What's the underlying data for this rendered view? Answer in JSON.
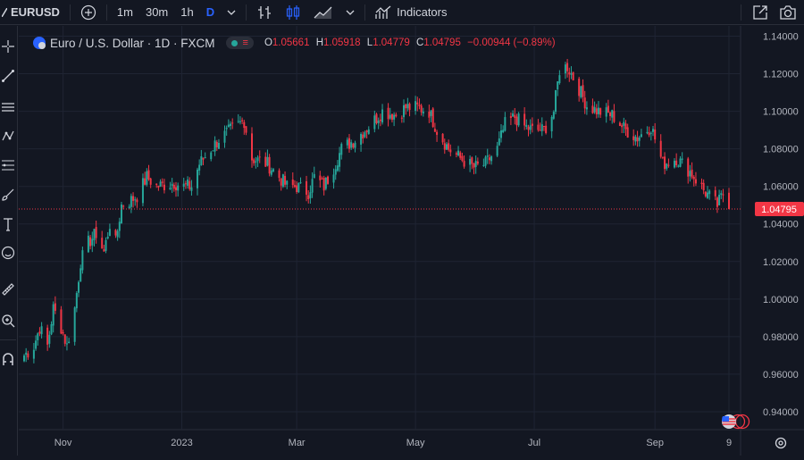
{
  "toolbar": {
    "symbol": "EURUSD",
    "intervals": [
      "1m",
      "30m",
      "1h",
      "D"
    ],
    "active_interval": "D",
    "indicators_label": "Indicators",
    "icons": [
      "add-symbol-icon",
      "chevron-down-icon",
      "bar-style-icon",
      "candle-style-icon",
      "area-style-icon",
      "indicators-icon",
      "fullscreen-icon",
      "camera-icon"
    ]
  },
  "left_tools": [
    "crosshair-icon",
    "trend-line-icon",
    "horizontal-lines-icon",
    "pattern-icon",
    "fib-icon",
    "brush-icon",
    "text-icon",
    "emoji-icon",
    "ruler-icon",
    "zoom-icon",
    "magnet-icon"
  ],
  "legend": {
    "title": "Euro / U.S. Dollar · 1D · FXCM",
    "open_label": "O",
    "open": "1.05661",
    "high_label": "H",
    "high": "1.05918",
    "low_label": "L",
    "low": "1.04779",
    "close_label": "C",
    "close": "1.04795",
    "change": "−0.00944 (−0.89%)"
  },
  "colors": {
    "up": "#26a69a",
    "down": "#f23645",
    "background": "#131722",
    "grid": "#1f2433",
    "text": "#b2b5be"
  },
  "chart_data": {
    "type": "candlestick",
    "symbol": "EURUSD",
    "interval": "1D",
    "ylim": [
      0.93,
      1.145
    ],
    "y_ticks": [
      "1.14000",
      "1.12000",
      "1.10000",
      "1.08000",
      "1.06000",
      "1.04000",
      "1.02000",
      "1.00000",
      "0.98000",
      "0.96000",
      "0.94000"
    ],
    "y_tick_values": [
      1.14,
      1.12,
      1.1,
      1.08,
      1.06,
      1.04,
      1.02,
      1.0,
      0.98,
      0.96,
      0.94
    ],
    "x_ticks": [
      "Nov",
      "2023",
      "Mar",
      "May",
      "Jul",
      "Sep",
      "9"
    ],
    "x_tick_dates": [
      "2022-11-01",
      "2023-01-01",
      "2023-03-01",
      "2023-05-01",
      "2023-07-01",
      "2023-09-01",
      "2023-10-09"
    ],
    "x_range": [
      "2022-10-12",
      "2023-10-09"
    ],
    "last_price": "1.04795",
    "last_value": 1.04795,
    "close_path": [
      [
        "2022-10-12",
        0.97
      ],
      [
        "2022-10-17",
        0.975
      ],
      [
        "2022-10-20",
        0.985
      ],
      [
        "2022-10-24",
        0.975
      ],
      [
        "2022-10-27",
        0.995
      ],
      [
        "2022-10-31",
        0.985
      ],
      [
        "2022-11-03",
        0.975
      ],
      [
        "2022-11-07",
        0.995
      ],
      [
        "2022-11-10",
        1.02
      ],
      [
        "2022-11-14",
        1.03
      ],
      [
        "2022-11-18",
        1.035
      ],
      [
        "2022-11-22",
        1.025
      ],
      [
        "2022-11-25",
        1.04
      ],
      [
        "2022-11-28",
        1.03
      ],
      [
        "2022-12-01",
        1.05
      ],
      [
        "2022-12-05",
        1.052
      ],
      [
        "2022-12-09",
        1.055
      ],
      [
        "2022-12-14",
        1.065
      ],
      [
        "2022-12-19",
        1.06
      ],
      [
        "2022-12-28",
        1.062
      ],
      [
        "2023-01-02",
        1.06
      ],
      [
        "2023-01-06",
        1.06
      ],
      [
        "2023-01-10",
        1.072
      ],
      [
        "2023-01-16",
        1.08
      ],
      [
        "2023-01-20",
        1.085
      ],
      [
        "2023-01-26",
        1.09
      ],
      [
        "2023-02-02",
        1.095
      ],
      [
        "2023-02-06",
        1.075
      ],
      [
        "2023-02-14",
        1.072
      ],
      [
        "2023-02-20",
        1.065
      ],
      [
        "2023-02-24",
        1.06
      ],
      [
        "2023-03-01",
        1.06
      ],
      [
        "2023-03-07",
        1.057
      ],
      [
        "2023-03-10",
        1.065
      ],
      [
        "2023-03-15",
        1.06
      ],
      [
        "2023-03-20",
        1.07
      ],
      [
        "2023-03-24",
        1.08
      ],
      [
        "2023-03-31",
        1.085
      ],
      [
        "2023-04-07",
        1.092
      ],
      [
        "2023-04-14",
        1.1
      ],
      [
        "2023-04-21",
        1.098
      ],
      [
        "2023-04-26",
        1.102
      ],
      [
        "2023-05-02",
        1.102
      ],
      [
        "2023-05-08",
        1.1
      ],
      [
        "2023-05-12",
        1.09
      ],
      [
        "2023-05-18",
        1.08
      ],
      [
        "2023-05-24",
        1.075
      ],
      [
        "2023-05-31",
        1.07
      ],
      [
        "2023-06-06",
        1.072
      ],
      [
        "2023-06-12",
        1.08
      ],
      [
        "2023-06-16",
        1.093
      ],
      [
        "2023-06-21",
        1.097
      ],
      [
        "2023-06-26",
        1.092
      ],
      [
        "2023-06-30",
        1.09
      ],
      [
        "2023-07-06",
        1.09
      ],
      [
        "2023-07-11",
        1.1
      ],
      [
        "2023-07-14",
        1.122
      ],
      [
        "2023-07-18",
        1.124
      ],
      [
        "2023-07-24",
        1.112
      ],
      [
        "2023-07-28",
        1.103
      ],
      [
        "2023-08-03",
        1.1
      ],
      [
        "2023-08-10",
        1.098
      ],
      [
        "2023-08-17",
        1.09
      ],
      [
        "2023-08-23",
        1.086
      ],
      [
        "2023-08-30",
        1.092
      ],
      [
        "2023-09-05",
        1.072
      ],
      [
        "2023-09-12",
        1.075
      ],
      [
        "2023-09-19",
        1.068
      ],
      [
        "2023-09-26",
        1.058
      ],
      [
        "2023-10-03",
        1.05
      ],
      [
        "2023-10-06",
        1.056
      ],
      [
        "2023-10-09",
        1.048
      ]
    ]
  }
}
